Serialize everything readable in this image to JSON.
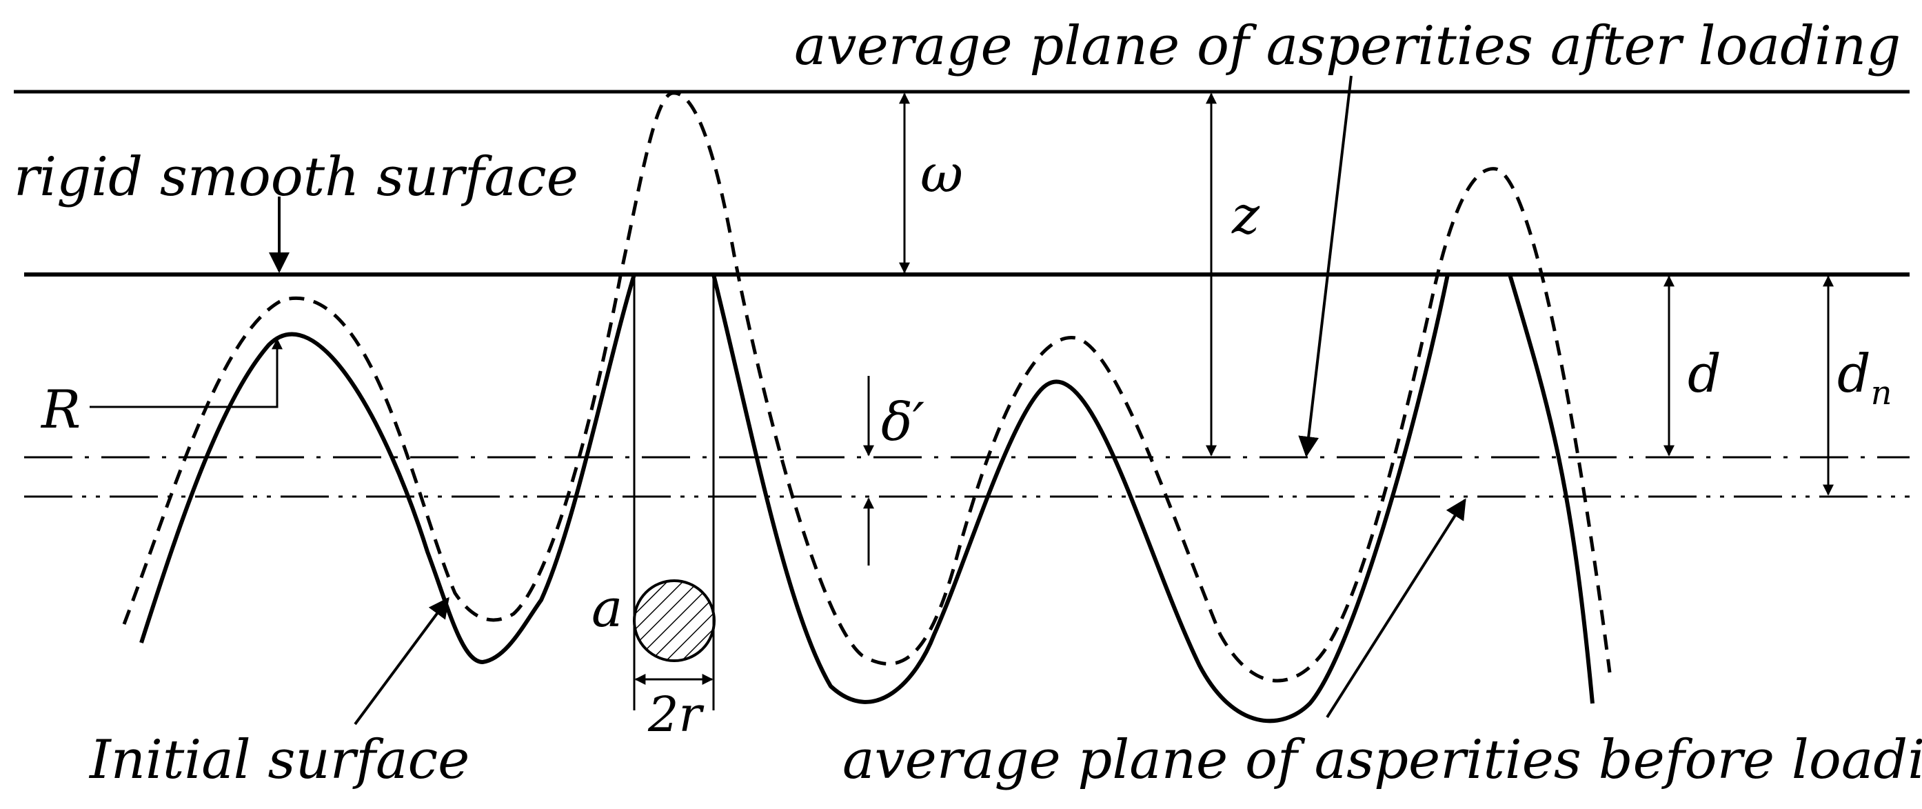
{
  "labels": {
    "after_loading": "average plane of asperities after loading",
    "rigid_surface": "rigid smooth surface",
    "initial_surface": "Initial surface",
    "before_loading": "average plane of asperities before loading"
  },
  "symbols": {
    "omega": "ω",
    "z": "z",
    "d": "d",
    "dn_base": "d",
    "dn_sub": "n",
    "R": "R",
    "delta_prime": "δ′",
    "a": "a",
    "two_r": "2r"
  }
}
